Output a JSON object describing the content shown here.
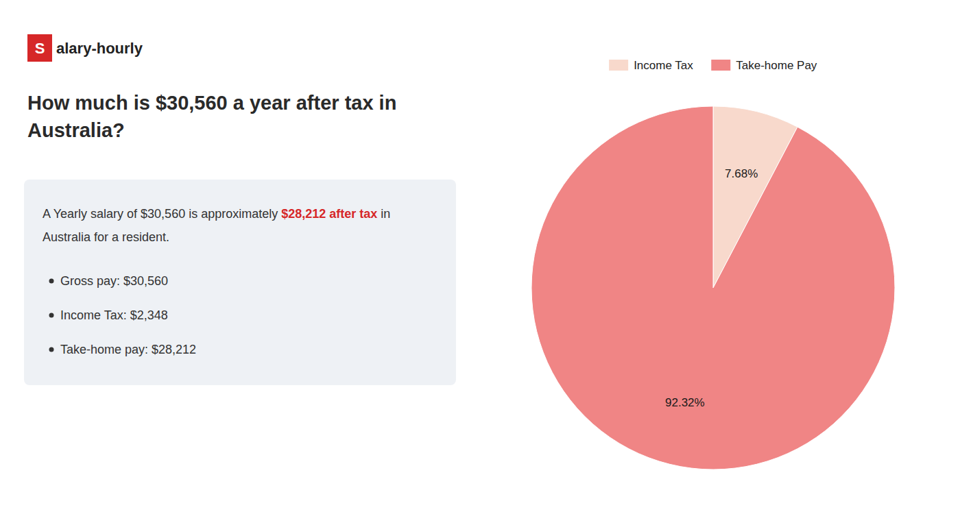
{
  "chart_data": {
    "type": "pie",
    "title": "How much is $30,560 a year after tax in Australia?",
    "annotations": [
      "S",
      "alary-hourly",
      "A Yearly salary of $30,560 is approximately ",
      "$28,212 after tax",
      " in",
      "Australia for a resident.",
      "Gross pay: $30,560",
      "Income Tax: $2,348",
      "Take-home pay: $28,212"
    ],
    "categories": [
      "Income Tax",
      "Take-home Pay"
    ],
    "values": [
      7.68,
      92.32
    ],
    "value_labels": [
      "7.68%",
      "92.32%"
    ],
    "colors": [
      "#f8d9cc",
      "#f08585"
    ],
    "data_labels": true,
    "legend": "top"
  }
}
